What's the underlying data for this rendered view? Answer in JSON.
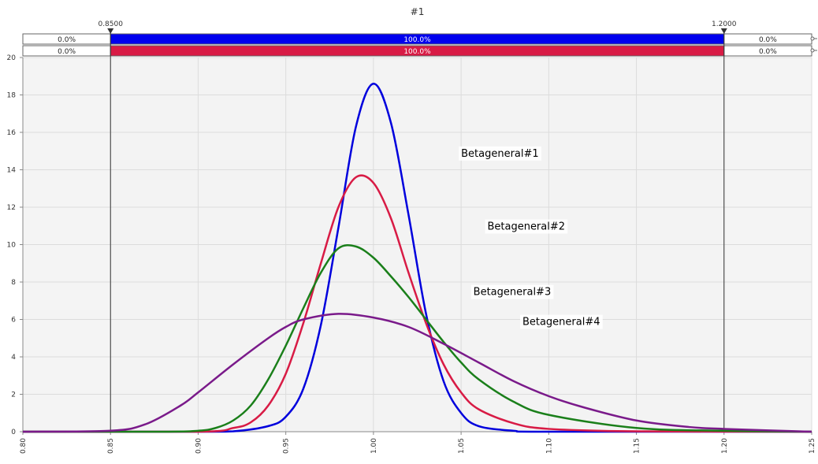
{
  "chart_data": {
    "type": "line",
    "title": "#1",
    "xlabel": "",
    "ylabel": "",
    "xlim": [
      0.8,
      1.25
    ],
    "ylim": [
      0,
      20
    ],
    "x_ticks": [
      "0.80",
      "0.85",
      "0.90",
      "0.95",
      "1.00",
      "1.05",
      "1.10",
      "1.15",
      "1.20",
      "1.25"
    ],
    "y_ticks": [
      "0",
      "2",
      "4",
      "6",
      "8",
      "10",
      "12",
      "14",
      "16",
      "18",
      "20"
    ],
    "grid": true,
    "delimiters": {
      "left": {
        "value": 0.85,
        "label": "0.8500"
      },
      "right": {
        "value": 1.2,
        "label": "1.2000"
      }
    },
    "probability_bars": [
      {
        "color": "#0000ee",
        "left": "0.0%",
        "middle": "100.0%",
        "right": "0.0%"
      },
      {
        "color": "#d81b45",
        "left": "0.0%",
        "middle": "100.0%",
        "right": "0.0%"
      }
    ],
    "series": [
      {
        "name": "Betageneral#1",
        "color": "#0000dd",
        "x": [
          0.8,
          0.9,
          0.92,
          0.94,
          0.95,
          0.96,
          0.97,
          0.98,
          0.99,
          1.0,
          1.01,
          1.02,
          1.03,
          1.04,
          1.05,
          1.06,
          1.08,
          1.1,
          1.25
        ],
        "y": [
          0,
          0,
          0.02,
          0.3,
          0.8,
          2.3,
          5.7,
          10.9,
          16.3,
          18.6,
          16.5,
          11.6,
          6.3,
          2.7,
          1.0,
          0.3,
          0.05,
          0,
          0
        ]
      },
      {
        "name": "Betageneral#2",
        "color": "#d81b45",
        "x": [
          0.8,
          0.9,
          0.92,
          0.93,
          0.94,
          0.95,
          0.96,
          0.97,
          0.98,
          0.99,
          1.0,
          1.01,
          1.02,
          1.03,
          1.04,
          1.05,
          1.06,
          1.08,
          1.1,
          1.15,
          1.25
        ],
        "y": [
          0,
          0,
          0.2,
          0.5,
          1.4,
          3.1,
          5.8,
          9.0,
          12.0,
          13.6,
          13.3,
          11.4,
          8.5,
          5.8,
          3.6,
          2.1,
          1.2,
          0.45,
          0.15,
          0.02,
          0
        ]
      },
      {
        "name": "Betageneral#3",
        "color": "#1a7f1a",
        "x": [
          0.8,
          0.88,
          0.9,
          0.91,
          0.92,
          0.93,
          0.94,
          0.95,
          0.96,
          0.97,
          0.98,
          0.99,
          1.0,
          1.01,
          1.02,
          1.03,
          1.04,
          1.05,
          1.06,
          1.08,
          1.1,
          1.15,
          1.2,
          1.25
        ],
        "y": [
          0,
          0,
          0.05,
          0.2,
          0.6,
          1.4,
          2.8,
          4.6,
          6.6,
          8.5,
          9.8,
          9.9,
          9.3,
          8.3,
          7.2,
          6.0,
          4.8,
          3.7,
          2.8,
          1.6,
          0.9,
          0.2,
          0.05,
          0
        ]
      },
      {
        "name": "Betageneral#4",
        "color": "#7a1a8a",
        "x": [
          0.8,
          0.85,
          0.87,
          0.89,
          0.9,
          0.92,
          0.94,
          0.95,
          0.96,
          0.98,
          1.0,
          1.02,
          1.04,
          1.06,
          1.08,
          1.1,
          1.12,
          1.15,
          1.18,
          1.2,
          1.25
        ],
        "y": [
          0,
          0.05,
          0.4,
          1.4,
          2.1,
          3.6,
          5.0,
          5.6,
          6.0,
          6.3,
          6.1,
          5.6,
          4.7,
          3.7,
          2.7,
          1.9,
          1.3,
          0.6,
          0.25,
          0.15,
          0
        ]
      }
    ],
    "annotations": [
      {
        "text": "Betageneral#1",
        "series": 0,
        "x": 1.05,
        "y": 14.7
      },
      {
        "text": "Betageneral#2",
        "series": 1,
        "x": 1.065,
        "y": 10.8
      },
      {
        "text": "Betageneral#3",
        "series": 2,
        "x": 1.057,
        "y": 7.3
      },
      {
        "text": "Betageneral#4",
        "series": 3,
        "x": 1.085,
        "y": 5.7
      }
    ]
  }
}
